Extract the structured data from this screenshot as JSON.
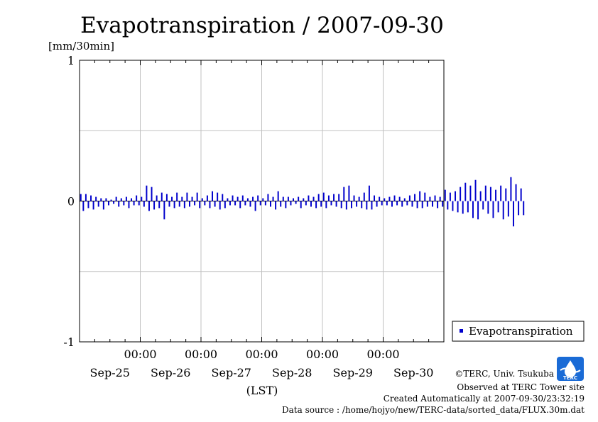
{
  "chart_data": {
    "type": "bar",
    "title": "Evapotranspiration / 2007-09-30",
    "ylabel": "[mm/30min]",
    "xlabel": "(LST)",
    "ylim": [
      -1,
      1
    ],
    "y_ticks": [
      {
        "value": -1,
        "label": "-1"
      },
      {
        "value": 0,
        "label": "0"
      },
      {
        "value": 1,
        "label": "1"
      }
    ],
    "y_grid": [
      -0.5,
      0.5
    ],
    "x_range": [
      0,
      6
    ],
    "x_ticks": [
      {
        "x": 1,
        "time": "00:00",
        "date": "Sep-25"
      },
      {
        "x": 2,
        "time": "00:00",
        "date": "Sep-26"
      },
      {
        "x": 3,
        "time": "00:00",
        "date": "Sep-27"
      },
      {
        "x": 4,
        "time": "00:00",
        "date": "Sep-28"
      },
      {
        "x": 5,
        "time": "00:00",
        "date": "Sep-29"
      },
      {
        "x": 6,
        "time": "00:00",
        "date": "Sep-30"
      }
    ],
    "interval_days": 0.0416667,
    "grid": true,
    "legend_position": "right-bottom",
    "series": [
      {
        "name": "Evapotranspiration",
        "color": "#0000cc",
        "values": [
          0.05,
          -0.07,
          0.05,
          -0.05,
          0.04,
          -0.06,
          0.03,
          -0.04,
          0.02,
          -0.06,
          0.02,
          -0.03,
          0.01,
          -0.02,
          0.03,
          -0.04,
          0.02,
          -0.03,
          0.03,
          -0.05,
          0.02,
          -0.03,
          0.04,
          -0.03,
          0.03,
          -0.04,
          0.11,
          -0.07,
          0.1,
          -0.06,
          0.04,
          -0.05,
          0.06,
          -0.13,
          0.05,
          -0.04,
          0.03,
          -0.05,
          0.06,
          -0.04,
          0.03,
          -0.05,
          0.06,
          -0.04,
          0.03,
          -0.03,
          0.06,
          -0.05,
          0.02,
          -0.03,
          0.04,
          -0.05,
          0.07,
          -0.04,
          0.06,
          -0.06,
          0.05,
          -0.05,
          0.02,
          -0.03,
          0.04,
          -0.03,
          0.03,
          -0.05,
          0.04,
          -0.03,
          0.02,
          -0.04,
          0.03,
          -0.07,
          0.04,
          -0.03,
          0.02,
          -0.03,
          0.05,
          -0.04,
          0.03,
          -0.06,
          0.07,
          -0.04,
          0.03,
          -0.05,
          0.03,
          -0.03,
          0.02,
          -0.02,
          0.03,
          -0.05,
          0.02,
          -0.03,
          0.04,
          -0.04,
          0.03,
          -0.05,
          0.05,
          -0.04,
          0.06,
          -0.05,
          0.04,
          -0.03,
          0.05,
          -0.04,
          0.05,
          -0.05,
          0.1,
          -0.06,
          0.11,
          -0.05,
          0.04,
          -0.04,
          0.03,
          -0.05,
          0.06,
          -0.06,
          0.11,
          -0.06,
          0.04,
          -0.04,
          0.03,
          -0.03,
          0.02,
          -0.03,
          0.03,
          -0.04,
          0.04,
          -0.03,
          0.03,
          -0.04,
          0.02,
          -0.03,
          0.04,
          -0.04,
          0.05,
          -0.05,
          0.07,
          -0.05,
          0.06,
          -0.04,
          0.03,
          -0.04,
          0.04,
          -0.05,
          0.03,
          -0.04,
          0.08,
          -0.06,
          0.06,
          -0.07,
          0.07,
          -0.08,
          0.1,
          -0.09,
          0.13,
          -0.08,
          0.11,
          -0.12,
          0.15,
          -0.13,
          0.07,
          -0.06,
          0.11,
          -0.09,
          0.1,
          -0.12,
          0.08,
          -0.08,
          0.11,
          -0.13,
          0.09,
          -0.11,
          0.17,
          -0.18,
          0.12,
          -0.1,
          0.09,
          -0.1
        ]
      }
    ]
  },
  "footer": {
    "copyright": "©TERC, Univ. Tsukuba",
    "observed": "Observed at TERC Tower site",
    "created": "Created Automatically at 2007-09-30/23:32:19",
    "source": "Data source : /home/hojyo/new/TERC-data/sorted_data/FLUX.30m.dat"
  },
  "logo": {
    "text": "TERC",
    "color": "#1a6bd6",
    "icon": "terc-logo-icon"
  }
}
